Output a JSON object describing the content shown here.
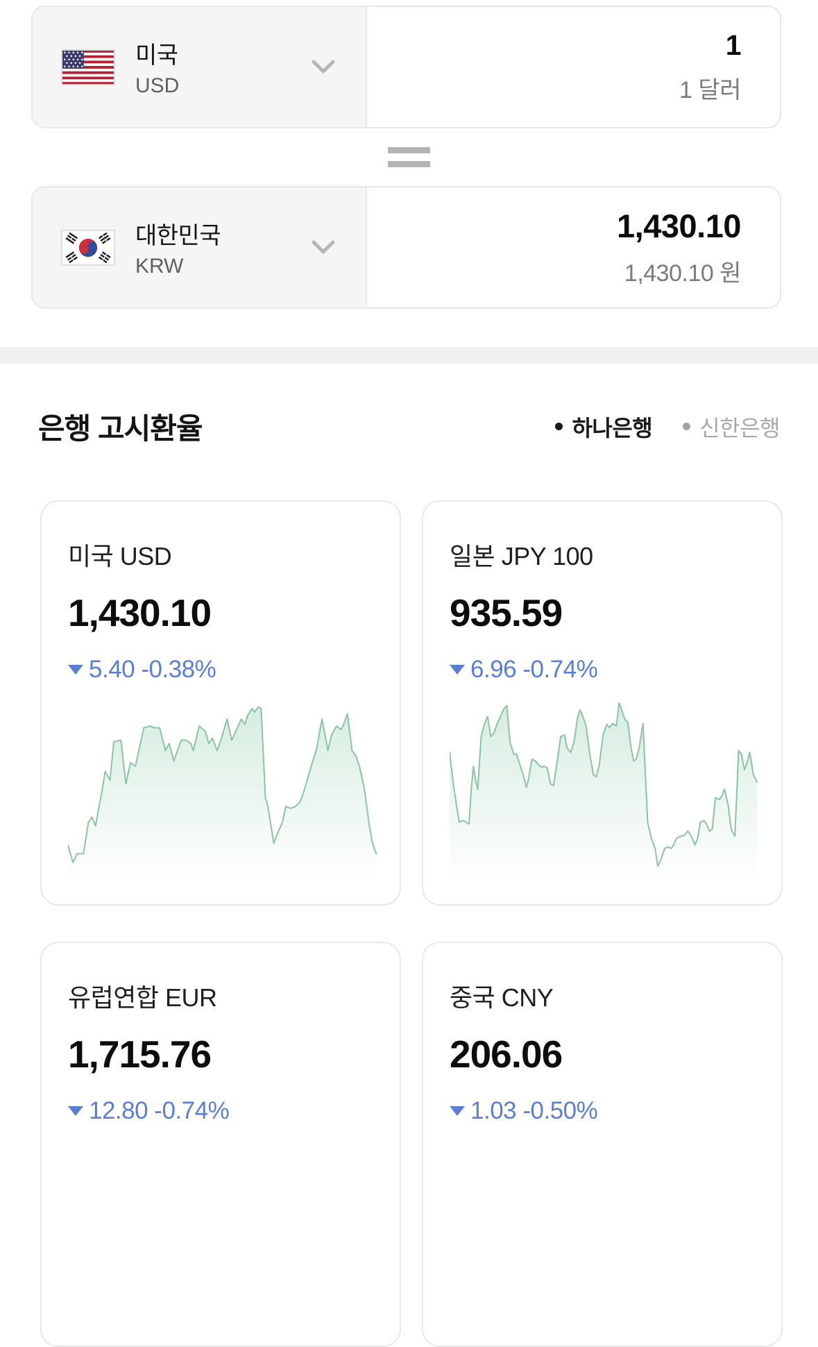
{
  "converter": {
    "from": {
      "country": "미국",
      "code": "USD",
      "flag": "us-flag",
      "amount": "1",
      "amount_label": "1 달러"
    },
    "to": {
      "country": "대한민국",
      "code": "KRW",
      "flag": "kr-flag",
      "amount": "1,430.10",
      "amount_label": "1,430.10 원"
    }
  },
  "section": {
    "title": "은행 고시환율",
    "legend": [
      {
        "label": "하나은행",
        "active": true
      },
      {
        "label": "신한은행",
        "active": false
      }
    ]
  },
  "colors": {
    "change_blue": "#5a7ed8",
    "chart_line": "#8ac4a5",
    "chart_fill": "#cfe9db",
    "legend_active": "#1a1a1a",
    "legend_inactive": "#a8a8a8",
    "panel_gray": "#f5f5f6",
    "divider_band": "#f0f0f1"
  },
  "chart_data": [
    {
      "type": "area",
      "name": "미국 USD",
      "value": "1,430.10",
      "change": "5.40 -0.38%",
      "direction": "down",
      "points": [
        [
          0,
          82
        ],
        [
          1.6,
          92
        ],
        [
          3,
          87
        ],
        [
          5,
          87
        ],
        [
          6.6,
          69
        ],
        [
          7.8,
          66
        ],
        [
          8.9,
          71
        ],
        [
          10.9,
          52
        ],
        [
          12,
          40
        ],
        [
          13.6,
          45
        ],
        [
          14.8,
          23
        ],
        [
          17.1,
          22
        ],
        [
          18.7,
          47
        ],
        [
          20.2,
          35
        ],
        [
          21.8,
          37
        ],
        [
          24.5,
          15
        ],
        [
          26.5,
          14
        ],
        [
          28,
          15
        ],
        [
          29.6,
          15
        ],
        [
          31.5,
          28
        ],
        [
          32.7,
          24
        ],
        [
          34.2,
          34
        ],
        [
          36.6,
          22
        ],
        [
          38.1,
          22
        ],
        [
          39.7,
          24
        ],
        [
          40.5,
          28
        ],
        [
          42.4,
          14
        ],
        [
          44.4,
          17
        ],
        [
          45.5,
          24
        ],
        [
          46.7,
          21
        ],
        [
          48.2,
          28
        ],
        [
          49.4,
          22
        ],
        [
          51.4,
          10
        ],
        [
          52.9,
          22
        ],
        [
          53.7,
          19
        ],
        [
          56,
          10
        ],
        [
          57.2,
          13
        ],
        [
          58,
          8
        ],
        [
          59.5,
          4
        ],
        [
          60.3,
          6
        ],
        [
          61.5,
          3
        ],
        [
          62.4,
          4
        ],
        [
          63.8,
          55
        ],
        [
          64.6,
          60
        ],
        [
          66.5,
          81
        ],
        [
          67.3,
          77
        ],
        [
          69.3,
          69
        ],
        [
          70.4,
          60
        ],
        [
          72,
          61
        ],
        [
          73.5,
          60
        ],
        [
          75.1,
          57
        ],
        [
          76.3,
          51
        ],
        [
          78.6,
          37
        ],
        [
          80.2,
          28
        ],
        [
          82.1,
          10
        ],
        [
          84,
          28
        ],
        [
          85.2,
          19
        ],
        [
          86.8,
          14
        ],
        [
          88.3,
          16
        ],
        [
          89.1,
          13
        ],
        [
          90.3,
          7
        ],
        [
          91.8,
          28
        ],
        [
          93,
          31
        ],
        [
          94.2,
          37
        ],
        [
          95.7,
          49
        ],
        [
          97.3,
          70
        ],
        [
          98.4,
          81
        ],
        [
          99.6,
          87
        ]
      ]
    },
    {
      "type": "area",
      "name": "일본 JPY 100",
      "value": "935.59",
      "change": "6.96 -0.74%",
      "direction": "down",
      "points": [
        [
          0,
          29
        ],
        [
          1.2,
          47
        ],
        [
          2.3,
          60
        ],
        [
          3.1,
          69
        ],
        [
          4.3,
          68
        ],
        [
          5.5,
          69
        ],
        [
          6.3,
          70
        ],
        [
          7,
          50
        ],
        [
          7.7,
          37
        ],
        [
          8.4,
          45
        ],
        [
          9.1,
          50
        ],
        [
          10.2,
          20
        ],
        [
          11.3,
          12.5
        ],
        [
          12.3,
          8.6
        ],
        [
          13.3,
          20
        ],
        [
          14.3,
          18
        ],
        [
          15.4,
          12.5
        ],
        [
          16.4,
          8.6
        ],
        [
          17.6,
          4
        ],
        [
          18.5,
          2.3
        ],
        [
          19.5,
          23
        ],
        [
          20.7,
          30
        ],
        [
          21.6,
          30
        ],
        [
          22.7,
          36
        ],
        [
          23.8,
          42
        ],
        [
          24.8,
          49
        ],
        [
          25.5,
          44.5
        ],
        [
          26.6,
          33
        ],
        [
          27.7,
          34
        ],
        [
          28.7,
          36
        ],
        [
          29.7,
          37.5
        ],
        [
          30.6,
          37
        ],
        [
          31.6,
          38
        ],
        [
          32.6,
          47
        ],
        [
          33.6,
          48
        ],
        [
          34.8,
          34
        ],
        [
          35.9,
          20
        ],
        [
          37.1,
          19
        ],
        [
          38,
          26.5
        ],
        [
          39.1,
          29
        ],
        [
          40.2,
          23
        ],
        [
          41.4,
          8.6
        ],
        [
          42.2,
          4.7
        ],
        [
          43.1,
          8.6
        ],
        [
          44.1,
          14
        ],
        [
          45.3,
          30
        ],
        [
          46.5,
          42
        ],
        [
          47.4,
          43
        ],
        [
          48.4,
          36
        ],
        [
          49.6,
          19
        ],
        [
          50.8,
          13
        ],
        [
          51.7,
          15
        ],
        [
          52.7,
          12.5
        ],
        [
          53.9,
          14
        ],
        [
          54.8,
          0.8
        ],
        [
          55.6,
          4.7
        ],
        [
          56.6,
          10
        ],
        [
          57.6,
          11.7
        ],
        [
          58.6,
          26
        ],
        [
          59.5,
          34
        ],
        [
          60.3,
          33
        ],
        [
          61.3,
          26
        ],
        [
          62.5,
          12.5
        ],
        [
          64,
          69
        ],
        [
          65.2,
          78
        ],
        [
          66.4,
          84
        ],
        [
          67.3,
          94
        ],
        [
          68.4,
          90
        ],
        [
          69.5,
          84
        ],
        [
          70.7,
          83
        ],
        [
          71.6,
          84
        ],
        [
          72.4,
          82
        ],
        [
          73.4,
          78
        ],
        [
          74.6,
          77
        ],
        [
          75.8,
          76.5
        ],
        [
          77,
          74
        ],
        [
          78.1,
          77
        ],
        [
          79.3,
          82
        ],
        [
          80.2,
          78
        ],
        [
          81,
          69
        ],
        [
          82.2,
          68
        ],
        [
          83,
          70
        ],
        [
          84,
          74
        ],
        [
          84.9,
          73
        ],
        [
          85.9,
          55
        ],
        [
          87.1,
          56
        ],
        [
          88,
          54
        ],
        [
          88.8,
          50
        ],
        [
          90,
          59
        ],
        [
          91,
          73
        ],
        [
          92.2,
          77
        ],
        [
          93.4,
          28
        ],
        [
          94.3,
          30
        ],
        [
          95.3,
          39
        ],
        [
          96.3,
          34
        ],
        [
          97,
          29
        ],
        [
          98.2,
          42
        ],
        [
          99.4,
          46
        ]
      ]
    },
    {
      "type": "area",
      "name": "유럽연합 EUR",
      "value": "1,715.76",
      "change": "12.80 -0.74%",
      "direction": "down",
      "points": []
    },
    {
      "type": "area",
      "name": "중국 CNY",
      "value": "206.06",
      "change": "1.03 -0.50%",
      "direction": "down",
      "points": []
    }
  ]
}
